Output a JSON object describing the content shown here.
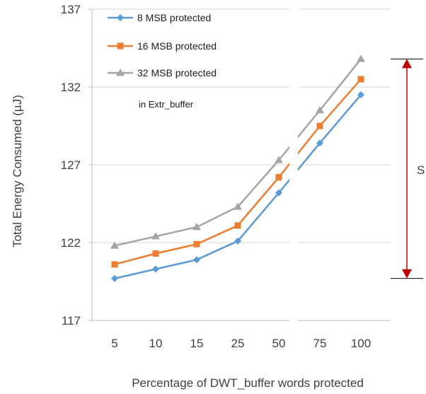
{
  "chart_data": {
    "type": "line",
    "categories": [
      "5",
      "10",
      "15",
      "25",
      "50",
      "75",
      "100"
    ],
    "series": [
      {
        "name": "8 MSB protected",
        "color": "#5b9bd5",
        "marker": "diamond",
        "values": [
          119.7,
          120.3,
          120.9,
          122.1,
          125.2,
          128.4,
          131.5
        ]
      },
      {
        "name": "16 MSB protected",
        "color": "#ed7d31",
        "marker": "square",
        "values": [
          120.6,
          121.3,
          121.9,
          123.1,
          126.2,
          129.5,
          132.5
        ]
      },
      {
        "name": "32 MSB protected",
        "color": "#a5a5a5",
        "marker": "triangle",
        "values": [
          121.8,
          122.4,
          123.0,
          124.3,
          127.3,
          130.5,
          133.8
        ]
      }
    ],
    "xlabel": "Percentage of DWT_buffer words protected",
    "ylabel": "Total Energy Consumed (µJ)",
    "ylim": [
      117,
      137
    ],
    "yticks": [
      117,
      122,
      127,
      132,
      137
    ],
    "grid": "horizontal",
    "legend": "top-left",
    "annotation_note": "in Extr_buffer",
    "bracket_label": "S",
    "bracket_color": "#c00000"
  }
}
